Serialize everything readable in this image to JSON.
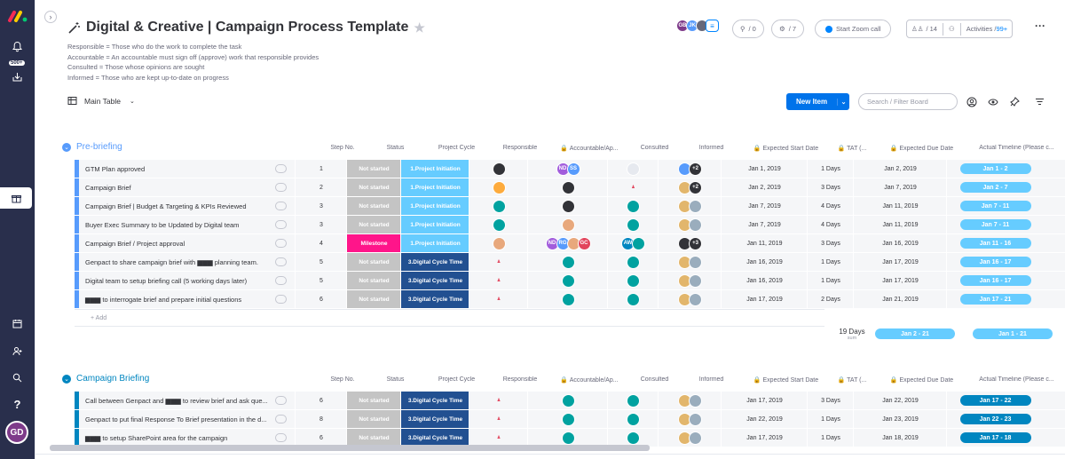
{
  "board": {
    "title": "Digital & Creative | Campaign Process Template",
    "description": [
      "Responsible = Those who do the work to complete the task",
      "Accountable = An accountable must sign off (approve) work that responsible provides",
      "Consulted = Those whose opinions are sought",
      "Informed = Those who are kept up-to-date on progress"
    ],
    "view": "Main Table",
    "new_item": "New Item",
    "search_placeholder": "Search / Filter Board",
    "members": [
      "GB",
      "JK"
    ],
    "integrations_count": "/ 0",
    "automations_count": "/ 7",
    "zoom": "Start Zoom call",
    "person_count": "/ 14",
    "activities": "Activities /",
    "activities_count": "99+",
    "notifications_badge": "500+"
  },
  "columns": [
    "Step No.",
    "Status",
    "Project Cycle",
    "Responsible",
    "Accountable/Ap...",
    "Consulted",
    "Informed",
    "Expected Start Date",
    "TAT (...",
    "Expected Due Date",
    "Actual Timeline (Please c..."
  ],
  "colors": {
    "not_started": "#c4c4c4",
    "milestone": "#ff158a",
    "proj_init": "#66ccff",
    "digital_cycle": "#225091",
    "timeline_light": "#66ccff",
    "timeline_dark": "#0086c0",
    "group1": "#579bfc",
    "group2": "#0086c0"
  },
  "groups": [
    {
      "title": "Pre-briefing",
      "color": "#579bfc",
      "add_label": "+ Add",
      "sum": {
        "tat": "19 Days",
        "tat_label": "sum",
        "due": "Jan 2 - 21",
        "actual": "Jan 1 - 21"
      },
      "rows": [
        {
          "name": "GTM Plan approved",
          "step": "1",
          "status": "Not started",
          "cycle": "1.Project Initiation",
          "resp": [
            "user"
          ],
          "acc": [
            {
              "t": "ND",
              "c": "#a25ddc"
            },
            {
              "t": "SS",
              "c": "#579bfc"
            }
          ],
          "cons": [
            {
              "t": "",
              "c": "#e6e9ef"
            }
          ],
          "inf": [
            {
              "t": "",
              "c": "#579bfc"
            },
            {
              "t": "+2",
              "c": "#323338"
            }
          ],
          "start": "Jan 1, 2019",
          "tat": "1 Days",
          "due": "Jan 2, 2019",
          "actual": "Jan 1 - 2"
        },
        {
          "name": "Campaign Brief",
          "step": "2",
          "status": "Not started",
          "cycle": "1.Project Initiation",
          "resp": [
            "ring"
          ],
          "acc": [
            {
              "t": "",
              "c": "#323338"
            }
          ],
          "cons": [
            {
              "t": "ppl",
              "c": ""
            }
          ],
          "inf": [
            {
              "t": "",
              "c": "#e2b66c"
            },
            {
              "t": "+2",
              "c": "#323338"
            }
          ],
          "start": "Jan 2, 2019",
          "tat": "3 Days",
          "due": "Jan 7, 2019",
          "actual": "Jan 2 - 7"
        },
        {
          "name": "Campaign Brief | Budget & Targeting & KPIs Reviewed",
          "step": "3",
          "status": "Not started",
          "cycle": "1.Project Initiation",
          "resp": [
            "teal"
          ],
          "acc": [
            {
              "t": "",
              "c": "#323338"
            }
          ],
          "cons": [
            {
              "t": "",
              "c": "#00a2a0"
            }
          ],
          "inf": [
            {
              "t": "",
              "c": "#e2b66c"
            },
            {
              "t": "",
              "c": "#9aadbd"
            }
          ],
          "start": "Jan 7, 2019",
          "tat": "4 Days",
          "due": "Jan 11, 2019",
          "actual": "Jan 7 - 11"
        },
        {
          "name": "Buyer Exec Summary to be Updated by Digital team",
          "step": "3",
          "status": "Not started",
          "cycle": "1.Project Initiation",
          "resp": [
            "teal"
          ],
          "acc": [
            {
              "t": "",
              "c": "#e8a87c"
            }
          ],
          "cons": [
            {
              "t": "",
              "c": "#00a2a0"
            }
          ],
          "inf": [
            {
              "t": "",
              "c": "#e2b66c"
            },
            {
              "t": "",
              "c": "#9aadbd"
            }
          ],
          "start": "Jan 7, 2019",
          "tat": "4 Days",
          "due": "Jan 11, 2019",
          "actual": "Jan 7 - 11"
        },
        {
          "name": "Campaign Brief / Project approval",
          "step": "4",
          "status": "Milestone",
          "cycle": "1.Project Initiation",
          "resp": [
            "face"
          ],
          "acc": [
            {
              "t": "ND",
              "c": "#a25ddc"
            },
            {
              "t": "RG",
              "c": "#579bfc"
            },
            {
              "t": "",
              "c": "#e8a87c"
            },
            {
              "t": "GC",
              "c": "#e2445c"
            }
          ],
          "cons": [
            {
              "t": "AW",
              "c": "#0086c0"
            },
            {
              "t": "",
              "c": "#00a2a0"
            }
          ],
          "inf": [
            {
              "t": "",
              "c": "#323338"
            },
            {
              "t": "+3",
              "c": "#323338"
            }
          ],
          "start": "Jan 11, 2019",
          "tat": "3 Days",
          "due": "Jan 16, 2019",
          "actual": "Jan 11 - 16"
        },
        {
          "name": "Genpact to share campaign brief with ▆▆▆ planning team.",
          "step": "5",
          "status": "Not started",
          "cycle": "3.Digital Cycle Time",
          "resp": [
            "ppl"
          ],
          "acc": [
            {
              "t": "",
              "c": "#00a2a0"
            }
          ],
          "cons": [
            {
              "t": "",
              "c": "#00a2a0"
            }
          ],
          "inf": [
            {
              "t": "",
              "c": "#e2b66c"
            },
            {
              "t": "",
              "c": "#9aadbd"
            }
          ],
          "start": "Jan 16, 2019",
          "tat": "1 Days",
          "due": "Jan 17, 2019",
          "actual": "Jan 16 - 17"
        },
        {
          "name": "Digital team to setup briefing call (5 working days later)",
          "step": "5",
          "status": "Not started",
          "cycle": "3.Digital Cycle Time",
          "resp": [
            "ppl"
          ],
          "acc": [
            {
              "t": "",
              "c": "#00a2a0"
            }
          ],
          "cons": [
            {
              "t": "",
              "c": "#00a2a0"
            }
          ],
          "inf": [
            {
              "t": "",
              "c": "#e2b66c"
            },
            {
              "t": "",
              "c": "#9aadbd"
            }
          ],
          "start": "Jan 16, 2019",
          "tat": "1 Days",
          "due": "Jan 17, 2019",
          "actual": "Jan 16 - 17"
        },
        {
          "name": "▆▆▆ to interrogate brief and prepare initial questions",
          "step": "6",
          "status": "Not started",
          "cycle": "3.Digital Cycle Time",
          "resp": [
            "ppl"
          ],
          "acc": [
            {
              "t": "",
              "c": "#00a2a0"
            }
          ],
          "cons": [
            {
              "t": "",
              "c": "#00a2a0"
            }
          ],
          "inf": [
            {
              "t": "",
              "c": "#e2b66c"
            },
            {
              "t": "",
              "c": "#9aadbd"
            }
          ],
          "start": "Jan 17, 2019",
          "tat": "2 Days",
          "due": "Jan 21, 2019",
          "actual": "Jan 17 - 21"
        }
      ]
    },
    {
      "title": "Campaign Briefing",
      "color": "#0086c0",
      "rows": [
        {
          "name": "Call between Genpact and ▆▆▆ to review brief and ask que...",
          "step": "6",
          "status": "Not started",
          "cycle": "3.Digital Cycle Time",
          "resp": [
            "ppl"
          ],
          "acc": [
            {
              "t": "",
              "c": "#00a2a0"
            }
          ],
          "cons": [
            {
              "t": "",
              "c": "#00a2a0"
            }
          ],
          "inf": [
            {
              "t": "",
              "c": "#e2b66c"
            },
            {
              "t": "",
              "c": "#9aadbd"
            }
          ],
          "start": "Jan 17, 2019",
          "tat": "3 Days",
          "due": "Jan 22, 2019",
          "actual": "Jan 17 - 22"
        },
        {
          "name": "Genpact to put final Response To Brief presentation in the d...",
          "step": "8",
          "status": "Not started",
          "cycle": "3.Digital Cycle Time",
          "resp": [
            "ppl"
          ],
          "acc": [
            {
              "t": "",
              "c": "#00a2a0"
            }
          ],
          "cons": [
            {
              "t": "",
              "c": "#00a2a0"
            }
          ],
          "inf": [
            {
              "t": "",
              "c": "#e2b66c"
            },
            {
              "t": "",
              "c": "#9aadbd"
            }
          ],
          "start": "Jan 22, 2019",
          "tat": "1 Days",
          "due": "Jan 23, 2019",
          "actual": "Jan 22 - 23"
        },
        {
          "name": "▆▆▆ to setup SharePoint area for the campaign",
          "step": "6",
          "status": "Not started",
          "cycle": "3.Digital Cycle Time",
          "resp": [
            "ppl"
          ],
          "acc": [
            {
              "t": "",
              "c": "#00a2a0"
            }
          ],
          "cons": [
            {
              "t": "",
              "c": "#00a2a0"
            }
          ],
          "inf": [
            {
              "t": "",
              "c": "#e2b66c"
            },
            {
              "t": "",
              "c": "#9aadbd"
            }
          ],
          "start": "Jan 17, 2019",
          "tat": "1 Days",
          "due": "Jan 18, 2019",
          "actual": "Jan 17 - 18"
        }
      ]
    }
  ]
}
